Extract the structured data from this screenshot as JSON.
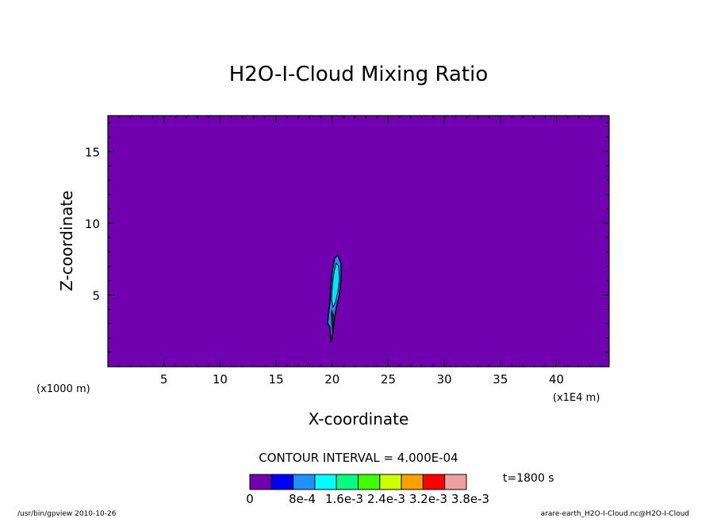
{
  "chart_data": {
    "type": "contour",
    "title": "H2O-I-Cloud Mixing Ratio",
    "xlabel": "X-coordinate",
    "ylabel": "Z-coordinate",
    "x_unit_left": "(x1000 m)",
    "x_unit_right": "(x1E4 m)",
    "xlim": [
      0,
      44.7
    ],
    "ylim": [
      0,
      17.5
    ],
    "x_ticks": [
      5,
      10,
      15,
      20,
      25,
      30,
      35,
      40
    ],
    "y_ticks": [
      5,
      10,
      15
    ],
    "background_color": "#7000b0",
    "contour_interval": "CONTOUR INTERVAL = 4.000E-04",
    "time_label": "t=1800 s",
    "colorbar": {
      "labels": [
        "0",
        "8e-4",
        "1.6e-3",
        "2.4e-3",
        "3.2e-3",
        "3.8e-3"
      ],
      "colors": [
        "#7000b0",
        "#0000ff",
        "#1e90ff",
        "#00ffff",
        "#00ff80",
        "#40ff00",
        "#ccff00",
        "#ffa000",
        "#ff0000",
        "#f0a0a0"
      ]
    },
    "feature": {
      "description_colors": [
        "#000000",
        "#1e90ff",
        "#00ffff"
      ],
      "x_range": [
        19.8,
        20.9
      ],
      "z_range": [
        1.7,
        7.9
      ],
      "outer_color": "#1e90ff",
      "inner_color": "#00e5ff"
    },
    "footer_left": "/usr/bin/gpview   2010-10-26",
    "footer_right": "arare-earth_H2O-I-Cloud.nc@H2O-I-Cloud"
  }
}
